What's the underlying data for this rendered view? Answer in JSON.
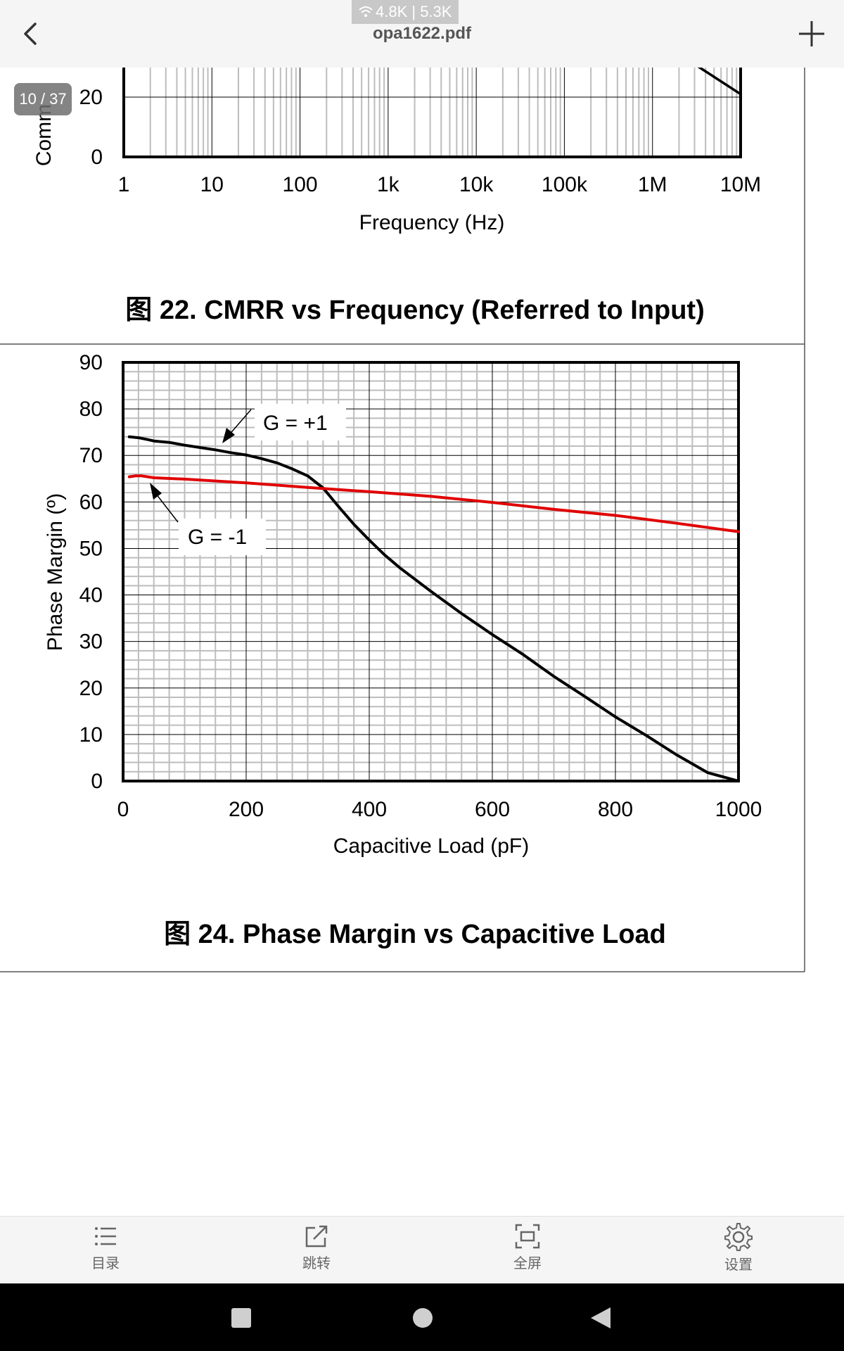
{
  "status": {
    "network_speed": "4.8K | 5.3K",
    "wifi_icon": "wifi-icon"
  },
  "topbar": {
    "title": "opa1622.pdf",
    "back_icon": "back-arrow-icon",
    "add_icon": "plus-icon"
  },
  "page_indicator": "10 / 37",
  "figure_22": {
    "y_visible_ticks": [
      "20",
      "0"
    ],
    "y_label_partial": "Comm",
    "x_ticks": [
      "1",
      "10",
      "100",
      "1k",
      "10k",
      "100k",
      "1M",
      "10M"
    ],
    "xlabel": "Frequency (Hz)",
    "caption": "图 22. CMRR vs Frequency (Referred to Input)"
  },
  "figure_24": {
    "caption": "图 24. Phase Margin vs Capacitive Load",
    "annotations": {
      "g_plus": "G = +1",
      "g_minus": "G = -1"
    }
  },
  "chart_data": [
    {
      "type": "line",
      "title": "",
      "xlabel": "Frequency (Hz)",
      "ylabel": "Comm",
      "x_scale": "log",
      "xlim": [
        1,
        10000000
      ],
      "y_visible_range": [
        0,
        30
      ],
      "grid": true,
      "series": [
        {
          "x": [
            3000000,
            10000000
          ],
          "y": [
            31,
            21
          ]
        }
      ],
      "colors": {
        "line": "#000000"
      }
    },
    {
      "type": "line",
      "title": "",
      "xlabel": "Capacitive Load (pF)",
      "ylabel": "Phase Margin (º)",
      "xlim": [
        0,
        1000
      ],
      "ylim": [
        0,
        90
      ],
      "x_ticks": [
        0,
        200,
        400,
        600,
        800,
        1000
      ],
      "y_ticks": [
        0,
        10,
        20,
        30,
        40,
        50,
        60,
        70,
        80,
        90
      ],
      "grid": true,
      "series": [
        {
          "name": "G = +1",
          "color": "#000000",
          "x": [
            10,
            25,
            40,
            50,
            75,
            100,
            125,
            150,
            175,
            200,
            225,
            250,
            275,
            300,
            325,
            350,
            375,
            400,
            425,
            450,
            475,
            500,
            550,
            600,
            650,
            700,
            750,
            800,
            850,
            900,
            950,
            1000
          ],
          "y": [
            74,
            73.8,
            73.4,
            73.1,
            72.8,
            72.2,
            71.7,
            71.2,
            70.6,
            70.1,
            69.3,
            68.4,
            67.1,
            65.6,
            63,
            59,
            55.2,
            51.8,
            48.6,
            45.8,
            43.3,
            40.8,
            36,
            31.5,
            27.2,
            22.5,
            18.2,
            13.8,
            9.8,
            5.6,
            1.8,
            0
          ]
        },
        {
          "name": "G = -1",
          "color": "#e00000",
          "x": [
            10,
            20,
            30,
            40,
            50,
            100,
            200,
            300,
            400,
            500,
            600,
            700,
            800,
            900,
            1000
          ],
          "y": [
            65.4,
            65.6,
            65.6,
            65.4,
            65.2,
            64.9,
            64.1,
            63.1,
            62.2,
            61.2,
            59.9,
            58.4,
            57.1,
            55.4,
            53.6
          ]
        }
      ]
    }
  ],
  "toolbar": {
    "items": [
      {
        "label": "目录",
        "icon": "list-icon"
      },
      {
        "label": "跳转",
        "icon": "jump-icon"
      },
      {
        "label": "全屏",
        "icon": "fullscreen-icon"
      },
      {
        "label": "设置",
        "icon": "gear-icon"
      }
    ]
  },
  "nav": {
    "icons": [
      "recent-apps-icon",
      "home-icon",
      "back-triangle-icon"
    ]
  }
}
